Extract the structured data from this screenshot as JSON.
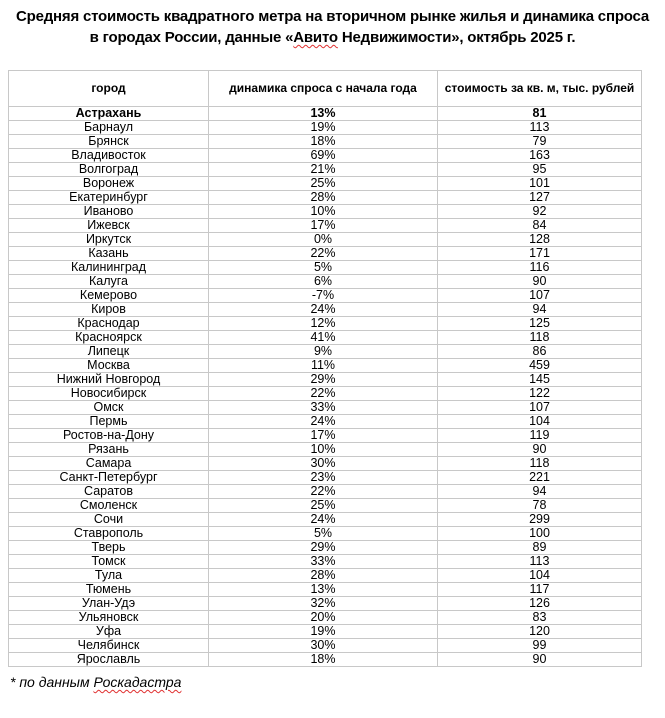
{
  "title": {
    "line1": "Средняя стоимость квадратного метра на вторичном рынке жилья и динамика спроса",
    "line2_pre": "в городах России, данные «",
    "line2_brand": "Авито",
    "line2_post": " Недвижимости», октябрь 2025 г."
  },
  "table": {
    "headers": [
      "город",
      "динамика спроса с начала года",
      "стоимость за кв. м, тыс. рублей"
    ],
    "rows": [
      [
        "Астрахань",
        "13%",
        "81"
      ],
      [
        "Барнаул",
        "19%",
        "113"
      ],
      [
        "Брянск",
        "18%",
        "79"
      ],
      [
        "Владивосток",
        "69%",
        "163"
      ],
      [
        "Волгоград",
        "21%",
        "95"
      ],
      [
        "Воронеж",
        "25%",
        "101"
      ],
      [
        "Екатеринбург",
        "28%",
        "127"
      ],
      [
        "Иваново",
        "10%",
        "92"
      ],
      [
        "Ижевск",
        "17%",
        "84"
      ],
      [
        "Иркутск",
        "0%",
        "128"
      ],
      [
        "Казань",
        "22%",
        "171"
      ],
      [
        "Калининград",
        "5%",
        "116"
      ],
      [
        "Калуга",
        "6%",
        "90"
      ],
      [
        "Кемерово",
        "-7%",
        "107"
      ],
      [
        "Киров",
        "24%",
        "94"
      ],
      [
        "Краснодар",
        "12%",
        "125"
      ],
      [
        "Красноярск",
        "41%",
        "118"
      ],
      [
        "Липецк",
        "9%",
        "86"
      ],
      [
        "Москва",
        "11%",
        "459"
      ],
      [
        "Нижний Новгород",
        "29%",
        "145"
      ],
      [
        "Новосибирск",
        "22%",
        "122"
      ],
      [
        "Омск",
        "33%",
        "107"
      ],
      [
        "Пермь",
        "24%",
        "104"
      ],
      [
        "Ростов-на-Дону",
        "17%",
        "119"
      ],
      [
        "Рязань",
        "10%",
        "90"
      ],
      [
        "Самара",
        "30%",
        "118"
      ],
      [
        "Санкт-Петербург",
        "23%",
        "221"
      ],
      [
        "Саратов",
        "22%",
        "94"
      ],
      [
        "Смоленск",
        "25%",
        "78"
      ],
      [
        "Сочи",
        "24%",
        "299"
      ],
      [
        "Ставрополь",
        "5%",
        "100"
      ],
      [
        "Тверь",
        "29%",
        "89"
      ],
      [
        "Томск",
        "33%",
        "113"
      ],
      [
        "Тула",
        "28%",
        "104"
      ],
      [
        "Тюмень",
        "13%",
        "117"
      ],
      [
        "Улан-Удэ",
        "32%",
        "126"
      ],
      [
        "Ульяновск",
        "20%",
        "83"
      ],
      [
        "Уфа",
        "19%",
        "120"
      ],
      [
        "Челябинск",
        "30%",
        "99"
      ],
      [
        "Ярославль",
        "18%",
        "90"
      ]
    ]
  },
  "footnote": {
    "pre": "* по данным ",
    "source": "Роскадастра"
  }
}
